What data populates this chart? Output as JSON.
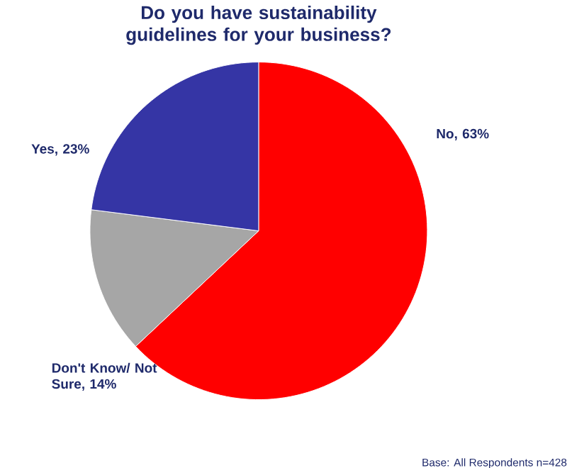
{
  "chart_data": {
    "type": "pie",
    "title": "Do you have sustainability guidelines for your business?",
    "categories": [
      "No, 63%",
      "Don't Know/ Not Sure, 14%",
      "Yes, 23%"
    ],
    "values": [
      63,
      14,
      23
    ],
    "colors": [
      "#ff0000",
      "#a6a6a6",
      "#3535a5"
    ],
    "annotations": [
      "Base: All Respondents n=428"
    ]
  }
}
